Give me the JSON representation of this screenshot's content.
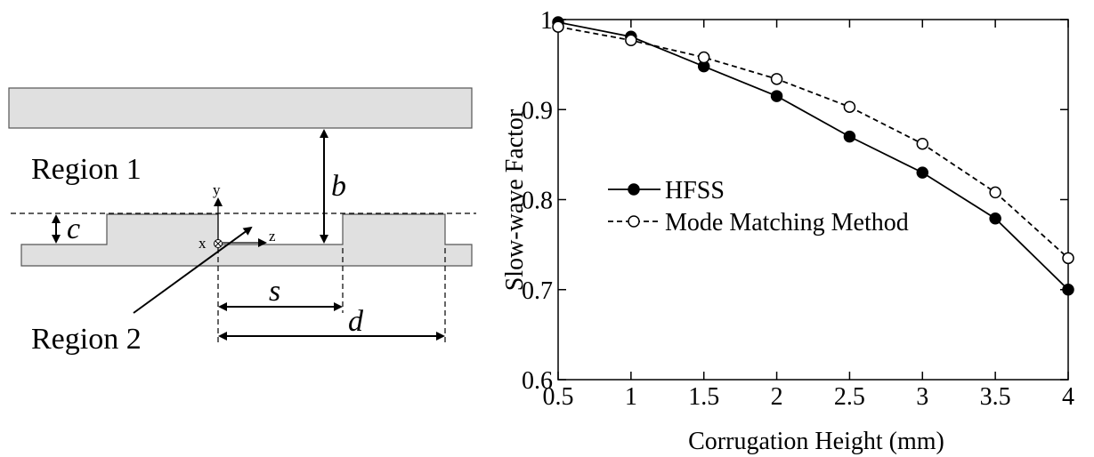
{
  "diagram": {
    "region1_label": "Region 1",
    "region2_label": "Region 2",
    "dim_b": "b",
    "dim_c": "c",
    "dim_s": "s",
    "dim_d": "d",
    "axis_y": "y",
    "axis_x": "x",
    "axis_z": "z"
  },
  "chart_data": {
    "type": "line",
    "xlabel": "Corrugation Height (mm)",
    "ylabel": "Slow-wave Factor",
    "xlim": [
      0.5,
      4
    ],
    "ylim": [
      0.6,
      1.0
    ],
    "x_ticks": [
      "0.5",
      "1",
      "1.5",
      "2",
      "2.5",
      "3",
      "3.5",
      "4"
    ],
    "y_ticks": [
      "0.6",
      "0.7",
      "0.8",
      "0.9",
      "1"
    ],
    "grid": false,
    "legend_placement": "center-left",
    "x": [
      0.5,
      1,
      1.5,
      2,
      2.5,
      3,
      3.5,
      4
    ],
    "series": [
      {
        "name": "HFSS",
        "values": [
          0.997,
          0.981,
          0.948,
          0.915,
          0.87,
          0.83,
          0.779,
          0.7
        ],
        "marker": "filled-circle",
        "line": "solid",
        "color": "#000000"
      },
      {
        "name": "Mode Matching Method",
        "values": [
          0.992,
          0.977,
          0.958,
          0.934,
          0.903,
          0.862,
          0.808,
          0.735
        ],
        "marker": "open-circle",
        "line": "dashed",
        "color": "#000000"
      }
    ]
  }
}
